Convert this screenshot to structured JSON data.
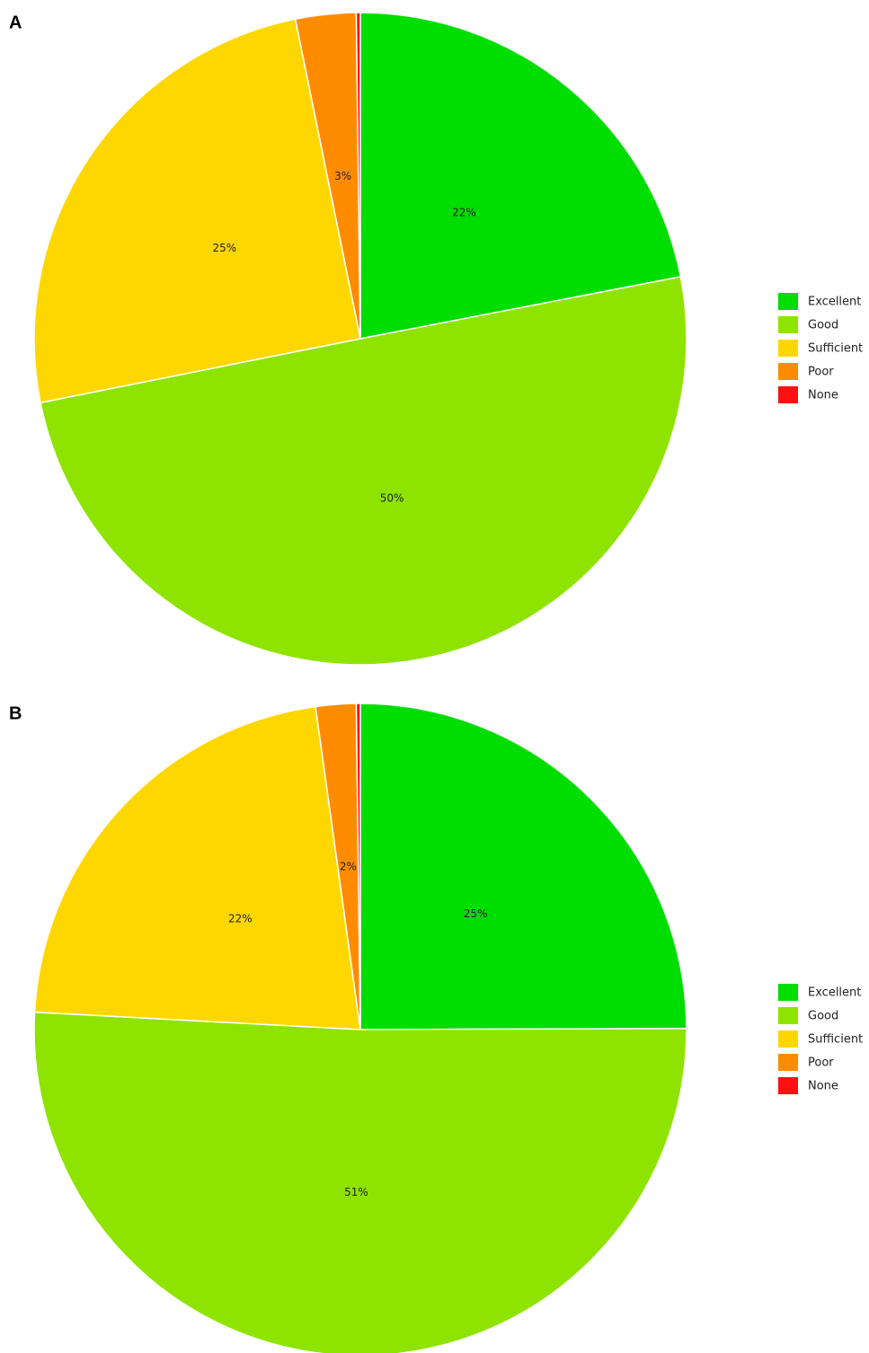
{
  "chart_data": [
    {
      "type": "pie",
      "panel": "A",
      "categories": [
        "Excellent",
        "Good",
        "Sufficient",
        "Poor",
        "None"
      ],
      "values": [
        22,
        50,
        25,
        3,
        0.2
      ],
      "value_labels": [
        "22%",
        "50%",
        "25%",
        "3%",
        null
      ],
      "colors": [
        "#00dd00",
        "#8ee400",
        "#ffd700",
        "#ff8c00",
        "#ff1010"
      ],
      "legend": "right"
    },
    {
      "type": "pie",
      "panel": "B",
      "categories": [
        "Excellent",
        "Good",
        "Sufficient",
        "Poor",
        "None"
      ],
      "values": [
        25,
        51,
        22,
        2,
        0.2
      ],
      "value_labels": [
        "25%",
        "51%",
        "22%",
        "2%",
        null
      ],
      "colors": [
        "#00dd00",
        "#8ee400",
        "#ffd700",
        "#ff8c00",
        "#ff1010"
      ],
      "legend": "right"
    }
  ]
}
